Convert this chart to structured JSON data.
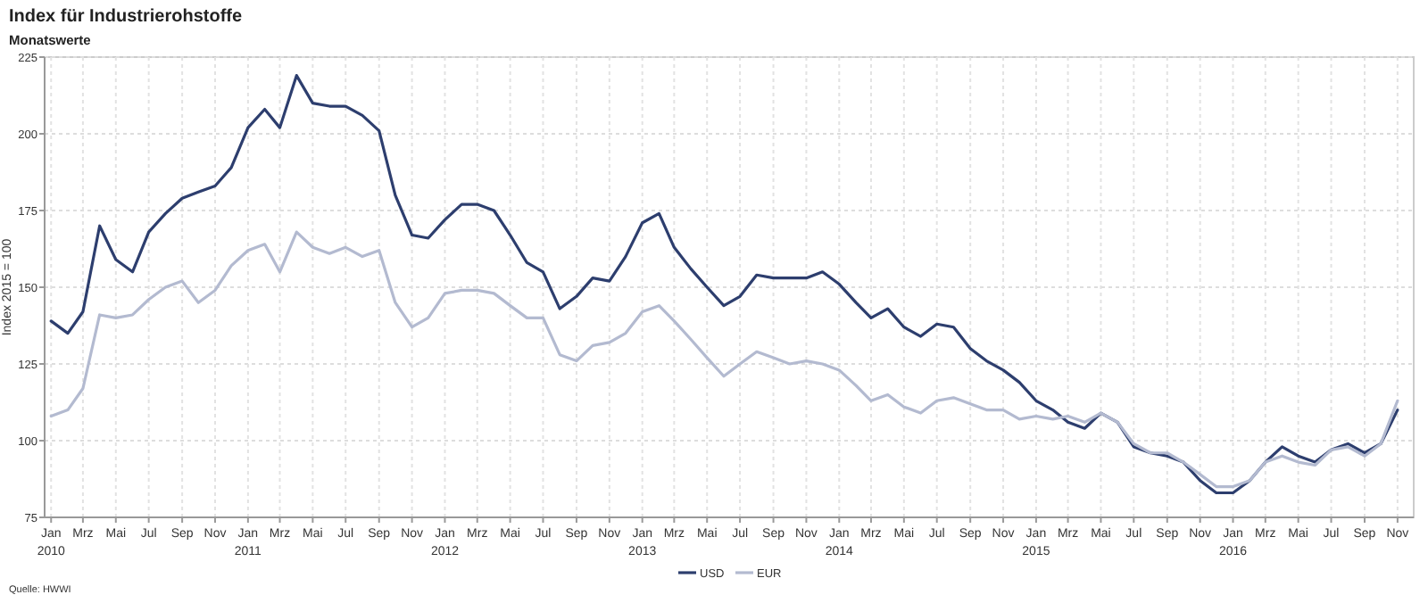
{
  "chart_data": {
    "type": "line",
    "title": "Index für Industrierohstoffe",
    "subtitle": "Monatswerte",
    "ylabel": "Index 2015 = 100",
    "annotations": [
      "Quelle: HWWI"
    ],
    "x": [
      "2010-01",
      "2010-02",
      "2010-03",
      "2010-04",
      "2010-05",
      "2010-06",
      "2010-07",
      "2010-08",
      "2010-09",
      "2010-10",
      "2010-11",
      "2010-12",
      "2011-01",
      "2011-02",
      "2011-03",
      "2011-04",
      "2011-05",
      "2011-06",
      "2011-07",
      "2011-08",
      "2011-09",
      "2011-10",
      "2011-11",
      "2011-12",
      "2012-01",
      "2012-02",
      "2012-03",
      "2012-04",
      "2012-05",
      "2012-06",
      "2012-07",
      "2012-08",
      "2012-09",
      "2012-10",
      "2012-11",
      "2012-12",
      "2013-01",
      "2013-02",
      "2013-03",
      "2013-04",
      "2013-05",
      "2013-06",
      "2013-07",
      "2013-08",
      "2013-09",
      "2013-10",
      "2013-11",
      "2013-12",
      "2014-01",
      "2014-02",
      "2014-03",
      "2014-04",
      "2014-05",
      "2014-06",
      "2014-07",
      "2014-08",
      "2014-09",
      "2014-10",
      "2014-11",
      "2014-12",
      "2015-01",
      "2015-02",
      "2015-03",
      "2015-04",
      "2015-05",
      "2015-06",
      "2015-07",
      "2015-08",
      "2015-09",
      "2015-10",
      "2015-11",
      "2015-12",
      "2016-01",
      "2016-02",
      "2016-03",
      "2016-04",
      "2016-05",
      "2016-06",
      "2016-07",
      "2016-08",
      "2016-09",
      "2016-10",
      "2016-11"
    ],
    "series": [
      {
        "name": "USD",
        "color": "#2d3e6e",
        "values": [
          139,
          135,
          142,
          170,
          159,
          155,
          168,
          174,
          179,
          181,
          183,
          189,
          202,
          208,
          202,
          219,
          210,
          209,
          209,
          206,
          201,
          180,
          167,
          166,
          172,
          177,
          177,
          175,
          167,
          158,
          155,
          143,
          147,
          153,
          152,
          160,
          171,
          174,
          163,
          156,
          150,
          144,
          147,
          154,
          153,
          153,
          153,
          155,
          151,
          145,
          140,
          143,
          137,
          134,
          138,
          137,
          130,
          126,
          123,
          119,
          113,
          110,
          106,
          104,
          109,
          106,
          98,
          96,
          95,
          93,
          87,
          83,
          83,
          87,
          93,
          98,
          95,
          93,
          97,
          99,
          96,
          99,
          110
        ]
      },
      {
        "name": "EUR",
        "color": "#b3bad0",
        "values": [
          108,
          110,
          117,
          141,
          140,
          141,
          146,
          150,
          152,
          145,
          149,
          157,
          162,
          164,
          155,
          168,
          163,
          161,
          163,
          160,
          162,
          145,
          137,
          140,
          148,
          149,
          149,
          148,
          144,
          140,
          140,
          128,
          126,
          131,
          132,
          135,
          142,
          144,
          139,
          133,
          127,
          121,
          125,
          129,
          127,
          125,
          126,
          125,
          123,
          118,
          113,
          115,
          111,
          109,
          113,
          114,
          112,
          110,
          110,
          107,
          108,
          107,
          108,
          106,
          109,
          106,
          99,
          96,
          96,
          93,
          89,
          85,
          85,
          87,
          93,
          95,
          93,
          92,
          97,
          98,
          95,
          99,
          113
        ]
      }
    ],
    "xlim": [
      "2009-12-20",
      "2016-12-01"
    ],
    "xticks": [
      {
        "value": "2010-01",
        "label": "Jan\n2010"
      },
      {
        "value": "2010-03",
        "label": "Mrz"
      },
      {
        "value": "2010-05",
        "label": "Mai"
      },
      {
        "value": "2010-07",
        "label": "Jul"
      },
      {
        "value": "2010-09",
        "label": "Sep"
      },
      {
        "value": "2010-11",
        "label": "Nov"
      },
      {
        "value": "2011-01",
        "label": "Jan\n2011"
      },
      {
        "value": "2011-03",
        "label": "Mrz"
      },
      {
        "value": "2011-05",
        "label": "Mai"
      },
      {
        "value": "2011-07",
        "label": "Jul"
      },
      {
        "value": "2011-09",
        "label": "Sep"
      },
      {
        "value": "2011-11",
        "label": "Nov"
      },
      {
        "value": "2012-01",
        "label": "Jan\n2012"
      },
      {
        "value": "2012-03",
        "label": "Mrz"
      },
      {
        "value": "2012-05",
        "label": "Mai"
      },
      {
        "value": "2012-07",
        "label": "Jul"
      },
      {
        "value": "2012-09",
        "label": "Sep"
      },
      {
        "value": "2012-11",
        "label": "Nov"
      },
      {
        "value": "2013-01",
        "label": "Jan\n2013"
      },
      {
        "value": "2013-03",
        "label": "Mrz"
      },
      {
        "value": "2013-05",
        "label": "Mai"
      },
      {
        "value": "2013-07",
        "label": "Jul"
      },
      {
        "value": "2013-09",
        "label": "Sep"
      },
      {
        "value": "2013-11",
        "label": "Nov"
      },
      {
        "value": "2014-01",
        "label": "Jan\n2014"
      },
      {
        "value": "2014-03",
        "label": "Mrz"
      },
      {
        "value": "2014-05",
        "label": "Mai"
      },
      {
        "value": "2014-07",
        "label": "Jul"
      },
      {
        "value": "2014-09",
        "label": "Sep"
      },
      {
        "value": "2014-11",
        "label": "Nov"
      },
      {
        "value": "2015-01",
        "label": "Jan\n2015"
      },
      {
        "value": "2015-03",
        "label": "Mrz"
      },
      {
        "value": "2015-05",
        "label": "Mai"
      },
      {
        "value": "2015-07",
        "label": "Jul"
      },
      {
        "value": "2015-09",
        "label": "Sep"
      },
      {
        "value": "2015-11",
        "label": "Nov"
      },
      {
        "value": "2016-01",
        "label": "Jan\n2016"
      },
      {
        "value": "2016-03",
        "label": "Mrz"
      },
      {
        "value": "2016-05",
        "label": "Mai"
      },
      {
        "value": "2016-07",
        "label": "Jul"
      },
      {
        "value": "2016-09",
        "label": "Sep"
      },
      {
        "value": "2016-11",
        "label": "Nov"
      }
    ],
    "ylim": [
      75,
      225
    ],
    "yticks": [
      75,
      100,
      125,
      150,
      175,
      200,
      225
    ],
    "grid": true,
    "legend": "bottom",
    "line_style": "solid"
  }
}
